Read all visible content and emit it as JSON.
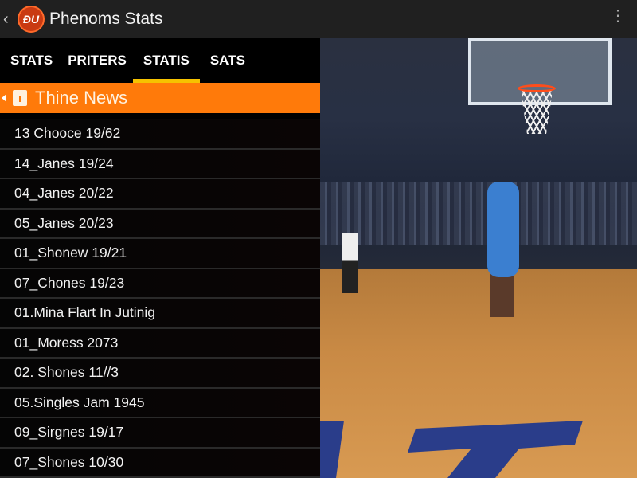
{
  "header": {
    "title": "Phenoms Stats",
    "logo_text": "ĐU",
    "back_icon": "chevron-left-icon",
    "menu_icon": "kebab-menu-icon"
  },
  "tabs": [
    {
      "label": "STATS"
    },
    {
      "label": "PRITERS"
    },
    {
      "label": "STATIS",
      "active": true
    },
    {
      "label": "SATS"
    }
  ],
  "news_bar": {
    "label": "Thine News",
    "icon": "calendar-icon",
    "color": "#ff7a0a"
  },
  "list": [
    "13 Chooce 19/62",
    "14_Janes 19/24",
    "04_Janes 20/22",
    "05_Janes 20/23",
    "01_Shonew 19/21",
    "07_Chones 19/23",
    "01.Mina Flart In Jutinig",
    "01_Moress 2073",
    "02. Shones 11//3",
    "05.Singles Jam 1945",
    "09_Sirgnes 19/17",
    "07_Shones 10/30"
  ],
  "colors": {
    "accent": "#ff7a0a",
    "tab_indicator": "#f6c200",
    "header_bg": "#202020"
  }
}
